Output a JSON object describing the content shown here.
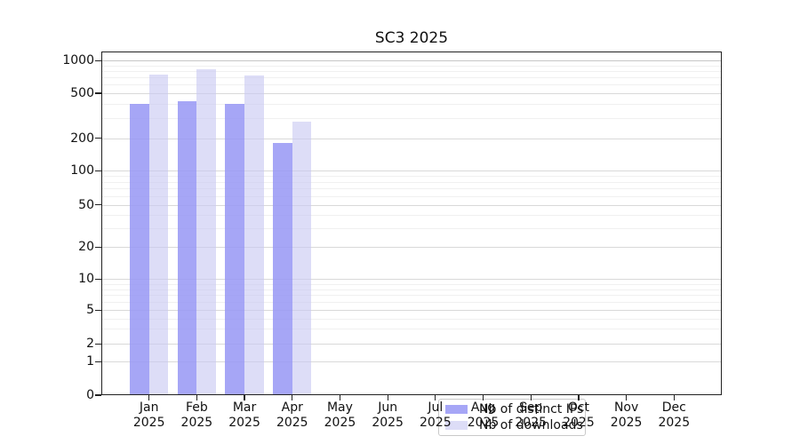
{
  "title": "SC3 2025",
  "chart_data": {
    "type": "bar",
    "title": "SC3 2025",
    "categories": [
      "Jan",
      "Feb",
      "Mar",
      "Apr",
      "May",
      "Jun",
      "Jul",
      "Aug",
      "Sep",
      "Oct",
      "Nov",
      "Dec"
    ],
    "year": "2025",
    "series": [
      {
        "name": "Nb of distinct IPs",
        "color": "#a6a6f4",
        "opacity": 0.85,
        "values": [
          400,
          425,
          400,
          180,
          0,
          0,
          0,
          0,
          0,
          0,
          0,
          0
        ]
      },
      {
        "name": "Nb of downloads",
        "color": "#dcdcf7",
        "opacity": 0.62,
        "values": [
          745,
          840,
          725,
          280,
          0,
          0,
          0,
          0,
          0,
          0,
          0,
          0
        ]
      }
    ],
    "yscale": "symlog",
    "y_major_ticks": [
      0,
      1,
      2,
      5,
      10,
      20,
      50,
      100,
      200,
      500,
      1000
    ],
    "y_minor_ticks": [
      3,
      4,
      6,
      7,
      8,
      9,
      30,
      40,
      60,
      70,
      80,
      90,
      300,
      400,
      600,
      700,
      800,
      900
    ],
    "ylim": [
      0,
      1200
    ],
    "xlabel": "",
    "ylabel": "",
    "grid": "horizontal-major-and-minor",
    "legend_position": "lower-center-inside"
  },
  "legend": {
    "items": [
      {
        "label": "Nb of distinct IPs",
        "color": "#a6a6f4"
      },
      {
        "label": "Nb of downloads",
        "color": "#dcdcf7"
      }
    ]
  },
  "colors": {
    "background": "#ffffff",
    "bar_distinct_ips": "#a6a6f4",
    "bar_downloads": "#dcdcf7",
    "grid_major": "#d9d9d9",
    "grid_minor": "#f0f0f0",
    "axis": "#222222",
    "legend_border": "#c9c9c9"
  }
}
